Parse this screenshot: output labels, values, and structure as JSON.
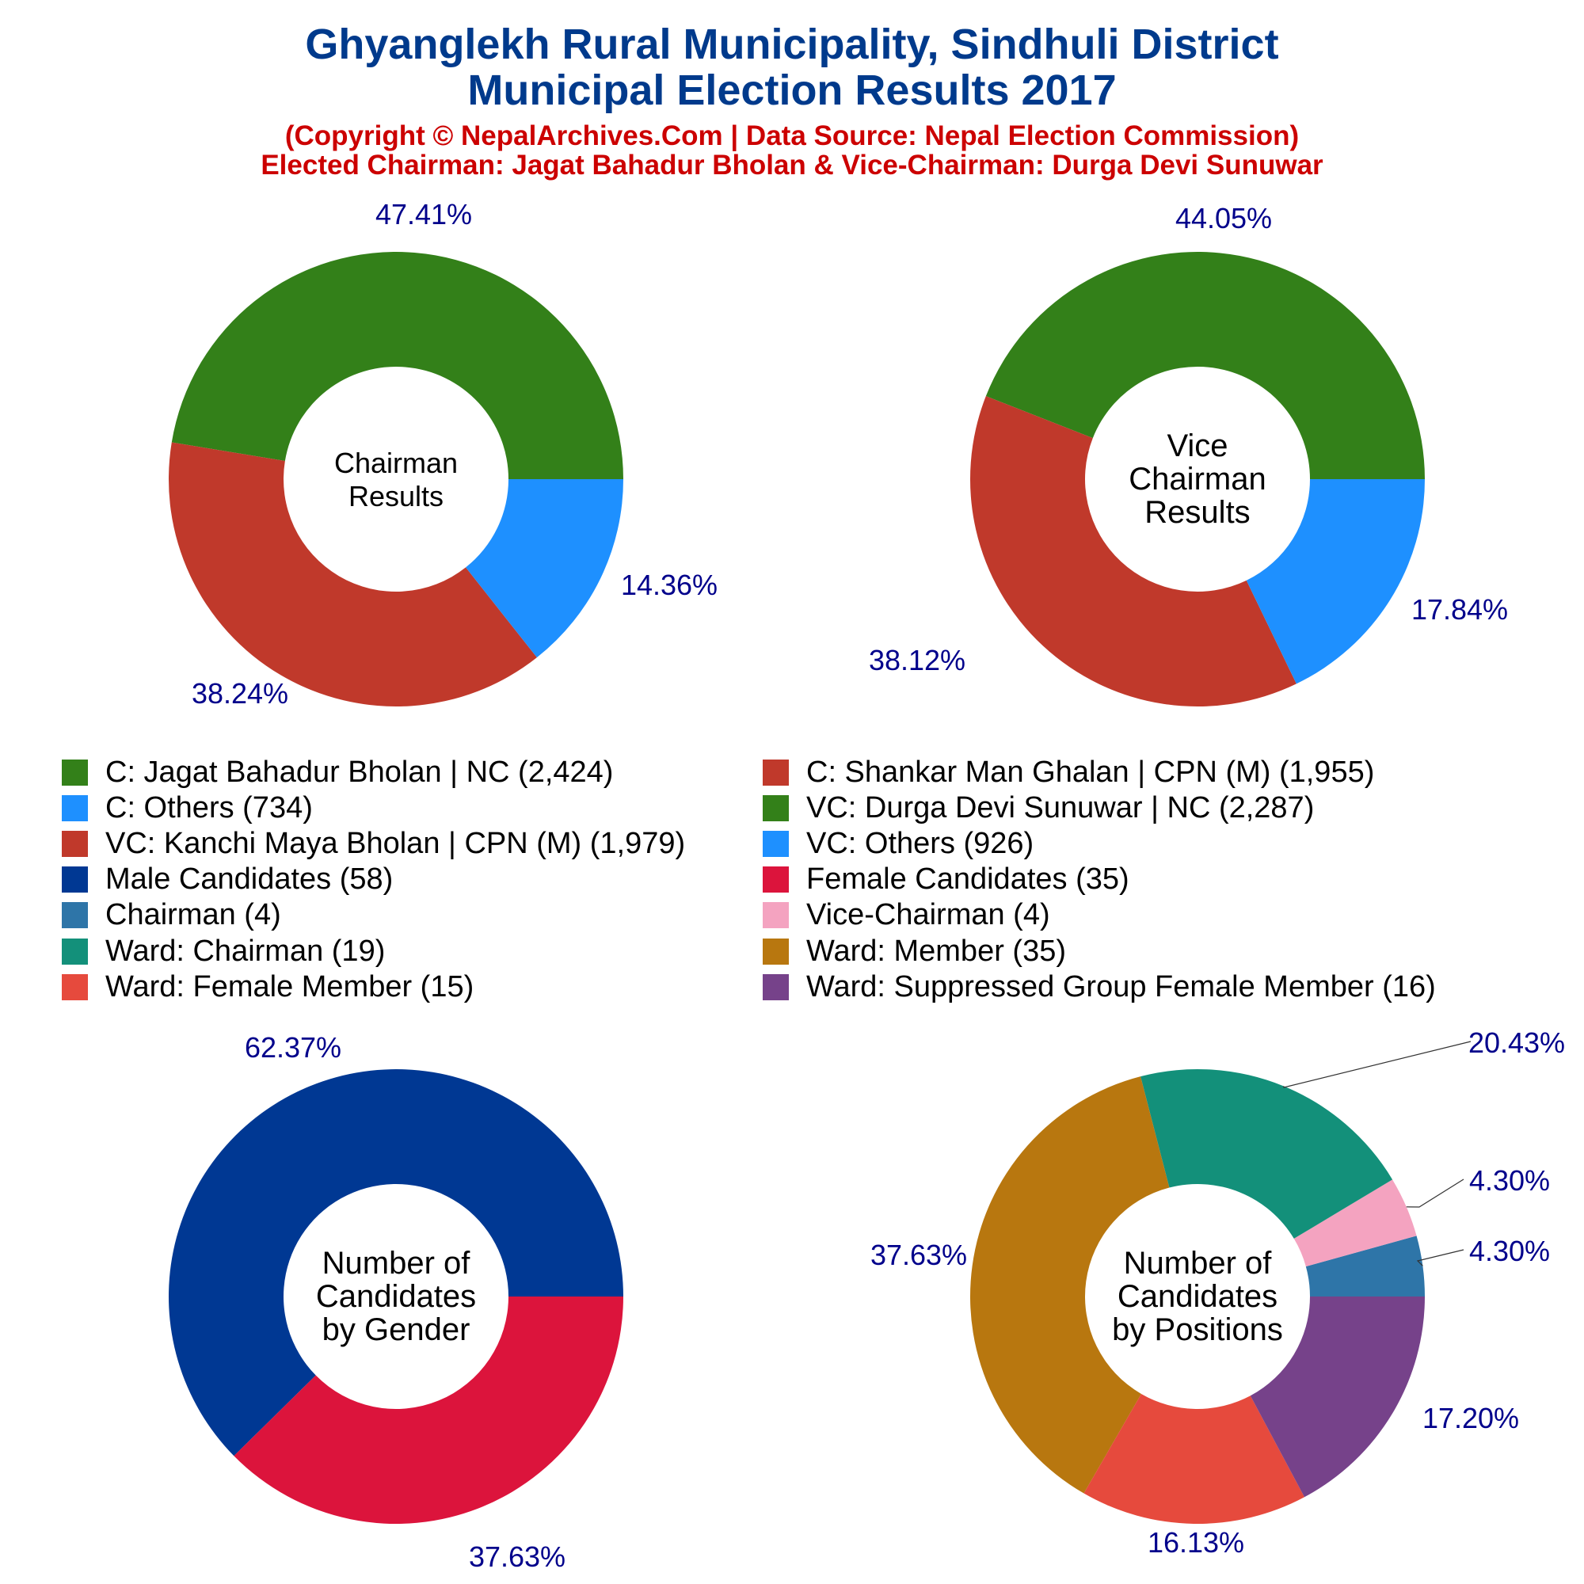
{
  "header": {
    "title_line1": "Ghyanglekh Rural Municipality, Sindhuli District",
    "title_line2": "Municipal Election Results 2017",
    "subtitle_line1": "(Copyright © NepalArchives.Com | Data Source: Nepal Election Commission)",
    "subtitle_line2": "Elected Chairman: Jagat Bahadur Bholan & Vice-Chairman: Durga Devi Sunuwar"
  },
  "colors": {
    "title": "#003a8c",
    "subtitle": "#cc0000",
    "pct_label": "#00008b"
  },
  "legend": [
    {
      "label": "C: Jagat Bahadur Bholan | NC (2,424)",
      "color": "#338019"
    },
    {
      "label": "C: Shankar Man Ghalan | CPN (M) (1,955)",
      "color": "#c0392b"
    },
    {
      "label": "C: Others (734)",
      "color": "#1e90ff"
    },
    {
      "label": "VC: Durga Devi Sunuwar | NC (2,287)",
      "color": "#338019"
    },
    {
      "label": "VC: Kanchi Maya Bholan | CPN (M) (1,979)",
      "color": "#c0392b"
    },
    {
      "label": "VC: Others (926)",
      "color": "#1e90ff"
    },
    {
      "label": "Male Candidates (58)",
      "color": "#003893"
    },
    {
      "label": "Female Candidates (35)",
      "color": "#dc143c"
    },
    {
      "label": "Chairman (4)",
      "color": "#2e75a8"
    },
    {
      "label": "Vice-Chairman (4)",
      "color": "#f4a3c0"
    },
    {
      "label": "Ward: Chairman (19)",
      "color": "#13907a"
    },
    {
      "label": "Ward: Member (35)",
      "color": "#b8770f"
    },
    {
      "label": "Ward: Female Member (15)",
      "color": "#e64a3d"
    },
    {
      "label": "Ward: Suppressed Group Female Member (16)",
      "color": "#76428a"
    }
  ],
  "chart_data": [
    {
      "type": "pie",
      "center_label": [
        "Chairman",
        "Results"
      ],
      "slices": [
        {
          "name": "C: Jagat Bahadur Bholan | NC",
          "value": 2424,
          "pct_label": "47.41%",
          "color": "#338019"
        },
        {
          "name": "C: Shankar Man Ghalan | CPN (M)",
          "value": 1955,
          "pct_label": "38.24%",
          "color": "#c0392b"
        },
        {
          "name": "C: Others",
          "value": 734,
          "pct_label": "14.36%",
          "color": "#1e90ff"
        }
      ]
    },
    {
      "type": "pie",
      "center_label": [
        "Vice",
        "Chairman",
        "Results"
      ],
      "slices": [
        {
          "name": "VC: Durga Devi Sunuwar | NC",
          "value": 2287,
          "pct_label": "44.05%",
          "color": "#338019"
        },
        {
          "name": "VC: Kanchi Maya Bholan | CPN (M)",
          "value": 1979,
          "pct_label": "38.12%",
          "color": "#c0392b"
        },
        {
          "name": "VC: Others",
          "value": 926,
          "pct_label": "17.84%",
          "color": "#1e90ff"
        }
      ]
    },
    {
      "type": "pie",
      "center_label": [
        "Number of",
        "Candidates",
        "by Gender"
      ],
      "slices": [
        {
          "name": "Male Candidates",
          "value": 58,
          "pct_label": "62.37%",
          "color": "#003893"
        },
        {
          "name": "Female Candidates",
          "value": 35,
          "pct_label": "37.63%",
          "color": "#dc143c"
        }
      ]
    },
    {
      "type": "pie",
      "center_label": [
        "Number of",
        "Candidates",
        "by Positions"
      ],
      "slices": [
        {
          "name": "Chairman",
          "value": 4,
          "pct_label": "4.30%",
          "color": "#2e75a8"
        },
        {
          "name": "Vice-Chairman",
          "value": 4,
          "pct_label": "4.30%",
          "color": "#f4a3c0"
        },
        {
          "name": "Ward: Chairman",
          "value": 19,
          "pct_label": "20.43%",
          "color": "#13907a"
        },
        {
          "name": "Ward: Member",
          "value": 35,
          "pct_label": "37.63%",
          "color": "#b8770f"
        },
        {
          "name": "Ward: Female Member",
          "value": 15,
          "pct_label": "16.13%",
          "color": "#e64a3d"
        },
        {
          "name": "Ward: Suppressed Group Female Member",
          "value": 16,
          "pct_label": "17.20%",
          "color": "#76428a"
        }
      ]
    }
  ]
}
